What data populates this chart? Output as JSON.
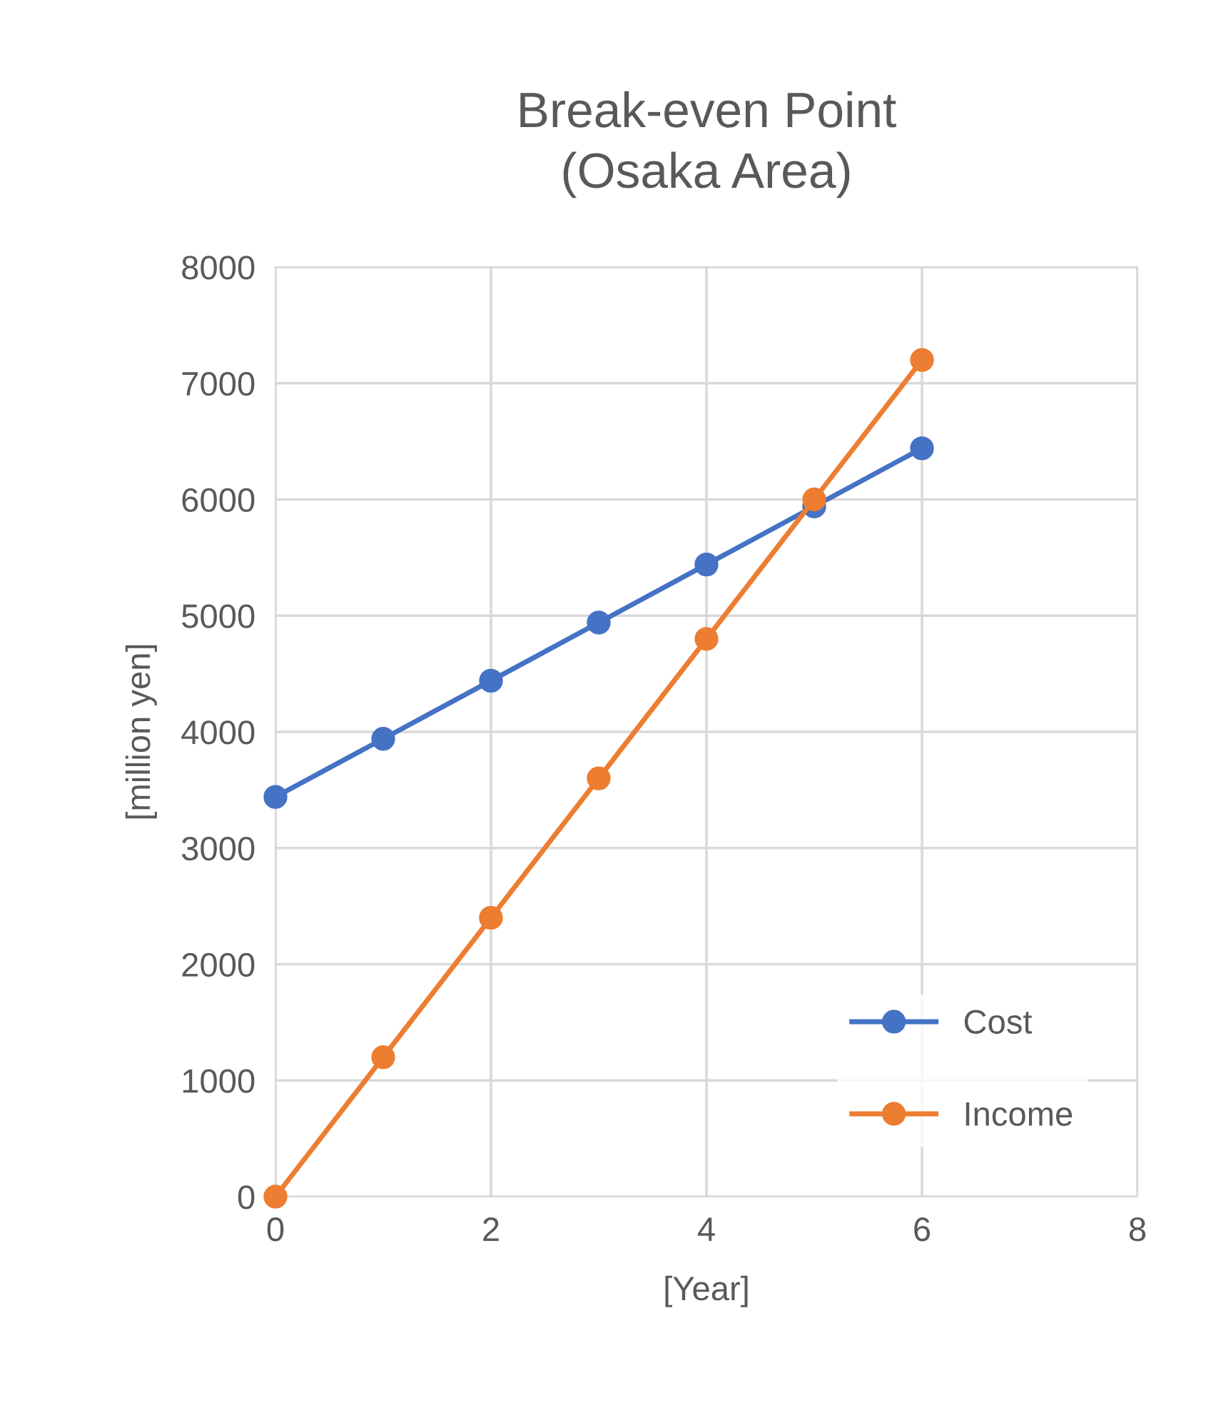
{
  "chart_data": {
    "type": "line",
    "title": "Break-even Point\n(Osaka Area)",
    "xlabel": "[Year]",
    "ylabel": "[million yen]",
    "x": [
      0,
      1,
      2,
      3,
      4,
      5,
      6
    ],
    "series": [
      {
        "name": "Cost",
        "color": "#4472c4",
        "values": [
          3440,
          3940,
          4440,
          4940,
          5440,
          5940,
          6440
        ]
      },
      {
        "name": "Income",
        "color": "#ed7d31",
        "values": [
          0,
          1200,
          2400,
          3600,
          4800,
          6000,
          7200
        ]
      }
    ],
    "xlim": [
      0,
      8
    ],
    "xticks": [
      0,
      2,
      4,
      6,
      8
    ],
    "ylim": [
      0,
      8000
    ],
    "yticks": [
      0,
      1000,
      2000,
      3000,
      4000,
      5000,
      6000,
      7000,
      8000
    ],
    "grid": true,
    "legend": "bottom right",
    "marker": "circle",
    "line_style": "solid"
  }
}
